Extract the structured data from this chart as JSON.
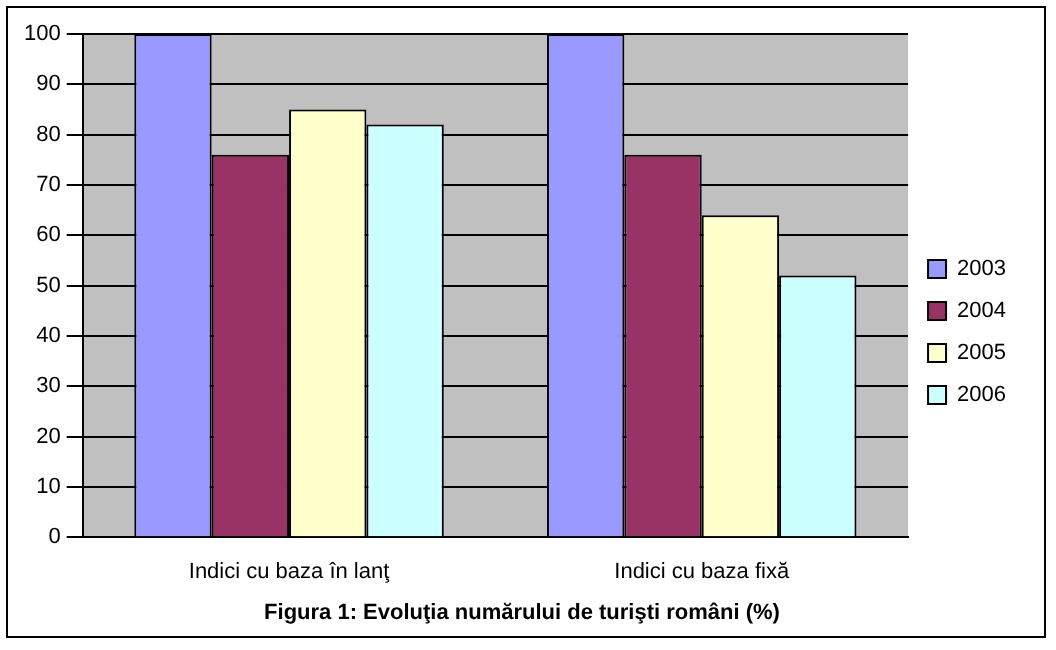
{
  "chart_data": {
    "type": "bar",
    "title": "Figura 1: Evoluţia numărului de turişti români (%)",
    "categories": [
      "Indici cu baza în lanţ",
      "Indici cu baza fixă"
    ],
    "series": [
      {
        "name": "2003",
        "color": "#9999ff",
        "values": [
          100,
          100
        ]
      },
      {
        "name": "2004",
        "color": "#993366",
        "values": [
          76,
          76
        ]
      },
      {
        "name": "2005",
        "color": "#ffffcc",
        "values": [
          85,
          64
        ]
      },
      {
        "name": "2006",
        "color": "#ccffff",
        "values": [
          82,
          52
        ]
      }
    ],
    "ylim": [
      0,
      100
    ],
    "yticks": [
      0,
      10,
      20,
      30,
      40,
      50,
      60,
      70,
      80,
      90,
      100
    ],
    "grid": "y",
    "legend": "right"
  }
}
